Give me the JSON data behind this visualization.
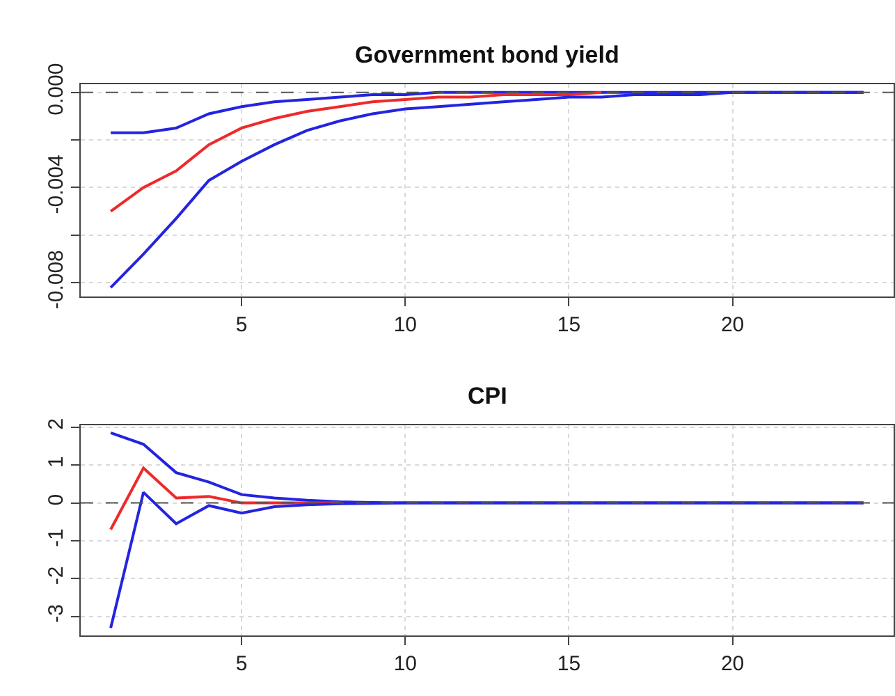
{
  "chart_data": [
    {
      "type": "line",
      "title": "Government bond yield",
      "x": [
        1,
        2,
        3,
        4,
        5,
        6,
        7,
        8,
        9,
        10,
        11,
        12,
        13,
        14,
        15,
        16,
        17,
        18,
        19,
        20,
        21,
        22,
        23,
        24
      ],
      "series": [
        {
          "color": "#2424e0",
          "values": [
            -0.0017,
            -0.0017,
            -0.0015,
            -0.0009,
            -0.0006,
            -0.0004,
            -0.0003,
            -0.0002,
            -0.0001,
            -0.0001,
            0,
            0,
            0,
            0,
            0,
            0,
            0,
            0,
            0,
            0,
            0,
            0,
            0,
            0
          ]
        },
        {
          "color": "#ee2a2a",
          "values": [
            -0.005,
            -0.004,
            -0.0033,
            -0.0022,
            -0.0015,
            -0.0011,
            -0.0008,
            -0.0006,
            -0.0004,
            -0.0003,
            -0.0002,
            -0.0002,
            -0.0001,
            -0.0001,
            -0.0001,
            0,
            null,
            null,
            null,
            null,
            null,
            null,
            null,
            null
          ]
        },
        {
          "color": "#2424e0",
          "values": [
            -0.0082,
            -0.0068,
            -0.0053,
            -0.0037,
            -0.0029,
            -0.0022,
            -0.0016,
            -0.0012,
            -0.0009,
            -0.0007,
            -0.0006,
            -0.0005,
            -0.0004,
            -0.0003,
            -0.0002,
            -0.0002,
            -0.0001,
            -0.0001,
            -0.0001,
            0,
            0,
            0,
            0,
            0
          ]
        }
      ],
      "xlim": [
        0.08,
        24.92
      ],
      "xticks": [
        5,
        10,
        15,
        20
      ],
      "ylim": [
        -0.00858,
        0.00033
      ],
      "yticks": [
        {
          "value": -0.008,
          "label": "-0.008"
        },
        {
          "value": -0.006,
          "label": null
        },
        {
          "value": -0.004,
          "label": "-0.004"
        },
        {
          "value": -0.002,
          "label": null
        },
        {
          "value": 0,
          "label": "0.000"
        }
      ],
      "ref_lines": [
        {
          "axis": "y",
          "value": 0,
          "color": "#555555",
          "line_style": "dashed"
        }
      ],
      "grid": true,
      "marker": "none",
      "line_style": "solid"
    },
    {
      "type": "line",
      "title": "CPI",
      "x": [
        1,
        2,
        3,
        4,
        5,
        6,
        7,
        8,
        9,
        10,
        11,
        12,
        13,
        14,
        15,
        16,
        17,
        18,
        19,
        20,
        21,
        22,
        23,
        24
      ],
      "series": [
        {
          "color": "#2424e0",
          "values": [
            1.85,
            1.55,
            0.8,
            0.55,
            0.22,
            0.13,
            0.07,
            0.03,
            0.01,
            0,
            0,
            0,
            0,
            0,
            0,
            0,
            0,
            0,
            0,
            0,
            0,
            0,
            0,
            0
          ]
        },
        {
          "color": "#ee2a2a",
          "values": [
            -0.7,
            0.92,
            0.13,
            0.17,
            0.0,
            0.0,
            0,
            0,
            null,
            null,
            null,
            null,
            null,
            null,
            null,
            null,
            null,
            null,
            null,
            null,
            null,
            null,
            null,
            null
          ]
        },
        {
          "color": "#2424e0",
          "values": [
            -3.3,
            0.28,
            -0.55,
            -0.07,
            -0.27,
            -0.1,
            -0.05,
            -0.02,
            -0.01,
            0,
            0,
            0,
            0,
            0,
            0,
            0,
            0,
            0,
            0,
            0,
            0,
            0,
            0,
            0
          ]
        }
      ],
      "xlim": [
        0.08,
        24.92
      ],
      "xticks": [
        5,
        10,
        15,
        20
      ],
      "ylim": [
        -3.506,
        2.056
      ],
      "yticks": [
        -3,
        -2,
        -1,
        0,
        1,
        2
      ],
      "ref_lines": [
        {
          "axis": "y",
          "value": 0,
          "color": "#555555",
          "line_style": "dashed"
        }
      ],
      "grid": true,
      "marker": "none",
      "line_style": "solid"
    }
  ]
}
